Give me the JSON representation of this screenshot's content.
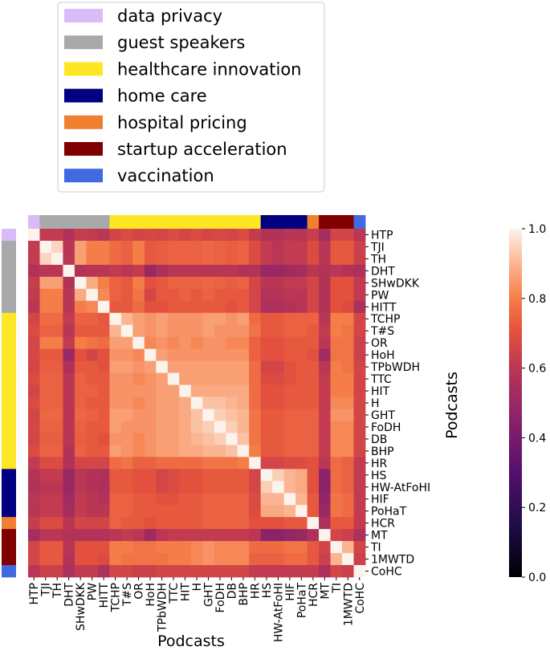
{
  "chart_data": {
    "type": "heatmap",
    "xlabel": "Podcasts",
    "ylabel": "Podcasts",
    "labels": [
      "HTP",
      "TJI",
      "TH",
      "DHT",
      "SHwDKK",
      "PW",
      "HITT",
      "TCHP",
      "T#S",
      "OR",
      "HoH",
      "TPbWDH",
      "TTC",
      "HIT",
      "H",
      "GHT",
      "FoDH",
      "DB",
      "BHP",
      "HR",
      "HS",
      "HW-AtFoHI",
      "HIF",
      "PoHaT",
      "HCR",
      "MT",
      "TI",
      "1MWTD",
      "CoHC"
    ],
    "groups": [
      "data privacy",
      "guest speakers",
      "guest speakers",
      "guest speakers",
      "guest speakers",
      "guest speakers",
      "guest speakers",
      "healthcare innovation",
      "healthcare innovation",
      "healthcare innovation",
      "healthcare innovation",
      "healthcare innovation",
      "healthcare innovation",
      "healthcare innovation",
      "healthcare innovation",
      "healthcare innovation",
      "healthcare innovation",
      "healthcare innovation",
      "healthcare innovation",
      "healthcare innovation",
      "home care",
      "home care",
      "home care",
      "home care",
      "hospital pricing",
      "startup acceleration",
      "startup acceleration",
      "startup acceleration",
      "vaccination"
    ],
    "legend": [
      {
        "name": "data privacy",
        "color": "#d9bbf7"
      },
      {
        "name": "guest speakers",
        "color": "#a9a9a9"
      },
      {
        "name": "healthcare innovation",
        "color": "#fde725"
      },
      {
        "name": "home care",
        "color": "#000080"
      },
      {
        "name": "hospital pricing",
        "color": "#f08030"
      },
      {
        "name": "startup acceleration",
        "color": "#800000"
      },
      {
        "name": "vaccination",
        "color": "#4169e1"
      }
    ],
    "colorbar": {
      "min": 0.0,
      "max": 1.0,
      "ticks": [
        "0.0",
        "0.2",
        "0.4",
        "0.6",
        "0.8",
        "1.0"
      ],
      "colormap": "inferno-like"
    },
    "values": [
      [
        1.0,
        0.62,
        0.62,
        0.58,
        0.63,
        0.62,
        0.6,
        0.66,
        0.68,
        0.66,
        0.67,
        0.66,
        0.68,
        0.66,
        0.68,
        0.66,
        0.67,
        0.66,
        0.68,
        0.62,
        0.58,
        0.58,
        0.6,
        0.59,
        0.63,
        0.54,
        0.66,
        0.66,
        0.6
      ],
      [
        0.62,
        1.0,
        0.95,
        0.6,
        0.86,
        0.8,
        0.8,
        0.76,
        0.74,
        0.8,
        0.72,
        0.73,
        0.74,
        0.74,
        0.74,
        0.75,
        0.74,
        0.73,
        0.74,
        0.68,
        0.62,
        0.6,
        0.62,
        0.62,
        0.68,
        0.6,
        0.72,
        0.72,
        0.64
      ],
      [
        0.62,
        0.95,
        1.0,
        0.6,
        0.86,
        0.8,
        0.8,
        0.76,
        0.74,
        0.8,
        0.72,
        0.73,
        0.74,
        0.74,
        0.74,
        0.75,
        0.74,
        0.73,
        0.74,
        0.68,
        0.62,
        0.6,
        0.62,
        0.62,
        0.68,
        0.6,
        0.72,
        0.72,
        0.64
      ],
      [
        0.58,
        0.6,
        0.6,
        1.0,
        0.58,
        0.6,
        0.6,
        0.62,
        0.6,
        0.62,
        0.5,
        0.56,
        0.6,
        0.6,
        0.6,
        0.6,
        0.6,
        0.6,
        0.58,
        0.58,
        0.5,
        0.5,
        0.52,
        0.54,
        0.6,
        0.58,
        0.6,
        0.58,
        0.56
      ],
      [
        0.63,
        0.86,
        0.86,
        0.58,
        1.0,
        0.88,
        0.8,
        0.74,
        0.72,
        0.8,
        0.7,
        0.72,
        0.74,
        0.74,
        0.74,
        0.75,
        0.74,
        0.73,
        0.74,
        0.66,
        0.6,
        0.6,
        0.62,
        0.62,
        0.66,
        0.58,
        0.7,
        0.7,
        0.62
      ],
      [
        0.62,
        0.8,
        0.8,
        0.6,
        0.88,
        1.0,
        0.82,
        0.74,
        0.72,
        0.78,
        0.66,
        0.72,
        0.72,
        0.74,
        0.72,
        0.74,
        0.72,
        0.72,
        0.72,
        0.66,
        0.58,
        0.58,
        0.6,
        0.6,
        0.66,
        0.58,
        0.7,
        0.7,
        0.62
      ],
      [
        0.6,
        0.8,
        0.8,
        0.6,
        0.8,
        0.82,
        1.0,
        0.72,
        0.72,
        0.76,
        0.7,
        0.7,
        0.72,
        0.72,
        0.72,
        0.72,
        0.72,
        0.7,
        0.72,
        0.66,
        0.56,
        0.56,
        0.58,
        0.6,
        0.66,
        0.58,
        0.7,
        0.68,
        0.56
      ],
      [
        0.66,
        0.76,
        0.76,
        0.62,
        0.74,
        0.74,
        0.72,
        1.0,
        0.9,
        0.86,
        0.84,
        0.86,
        0.84,
        0.84,
        0.84,
        0.86,
        0.86,
        0.84,
        0.86,
        0.76,
        0.72,
        0.72,
        0.74,
        0.74,
        0.74,
        0.6,
        0.8,
        0.8,
        0.66
      ],
      [
        0.68,
        0.74,
        0.74,
        0.6,
        0.72,
        0.72,
        0.72,
        0.9,
        1.0,
        0.86,
        0.84,
        0.86,
        0.84,
        0.84,
        0.84,
        0.86,
        0.84,
        0.84,
        0.84,
        0.78,
        0.72,
        0.72,
        0.74,
        0.74,
        0.72,
        0.62,
        0.8,
        0.78,
        0.66
      ],
      [
        0.66,
        0.8,
        0.8,
        0.62,
        0.8,
        0.78,
        0.76,
        0.86,
        0.86,
        1.0,
        0.82,
        0.84,
        0.82,
        0.84,
        0.82,
        0.84,
        0.84,
        0.82,
        0.82,
        0.74,
        0.7,
        0.7,
        0.72,
        0.72,
        0.72,
        0.6,
        0.78,
        0.78,
        0.64
      ],
      [
        0.67,
        0.72,
        0.72,
        0.5,
        0.7,
        0.66,
        0.7,
        0.84,
        0.84,
        0.82,
        1.0,
        0.86,
        0.84,
        0.84,
        0.84,
        0.84,
        0.84,
        0.84,
        0.84,
        0.74,
        0.7,
        0.7,
        0.72,
        0.72,
        0.7,
        0.52,
        0.78,
        0.78,
        0.64
      ],
      [
        0.66,
        0.73,
        0.73,
        0.56,
        0.72,
        0.72,
        0.7,
        0.86,
        0.86,
        0.84,
        0.86,
        1.0,
        0.86,
        0.86,
        0.86,
        0.86,
        0.86,
        0.86,
        0.86,
        0.76,
        0.66,
        0.66,
        0.7,
        0.72,
        0.72,
        0.6,
        0.8,
        0.78,
        0.66
      ],
      [
        0.68,
        0.74,
        0.74,
        0.6,
        0.74,
        0.72,
        0.72,
        0.84,
        0.84,
        0.82,
        0.84,
        0.86,
        1.0,
        0.86,
        0.86,
        0.86,
        0.86,
        0.86,
        0.86,
        0.76,
        0.68,
        0.68,
        0.7,
        0.72,
        0.72,
        0.62,
        0.8,
        0.8,
        0.66
      ],
      [
        0.66,
        0.74,
        0.74,
        0.6,
        0.74,
        0.74,
        0.72,
        0.84,
        0.84,
        0.84,
        0.84,
        0.86,
        0.86,
        1.0,
        0.88,
        0.88,
        0.88,
        0.88,
        0.88,
        0.76,
        0.7,
        0.7,
        0.72,
        0.72,
        0.72,
        0.62,
        0.8,
        0.8,
        0.66
      ],
      [
        0.68,
        0.74,
        0.74,
        0.6,
        0.74,
        0.72,
        0.72,
        0.84,
        0.84,
        0.82,
        0.84,
        0.86,
        0.86,
        0.88,
        1.0,
        0.92,
        0.92,
        0.9,
        0.88,
        0.76,
        0.7,
        0.7,
        0.72,
        0.72,
        0.72,
        0.62,
        0.82,
        0.82,
        0.66
      ],
      [
        0.66,
        0.75,
        0.75,
        0.6,
        0.75,
        0.74,
        0.72,
        0.86,
        0.86,
        0.84,
        0.84,
        0.86,
        0.86,
        0.88,
        0.92,
        1.0,
        0.94,
        0.92,
        0.9,
        0.78,
        0.72,
        0.72,
        0.74,
        0.74,
        0.74,
        0.62,
        0.84,
        0.84,
        0.66
      ],
      [
        0.67,
        0.74,
        0.74,
        0.6,
        0.74,
        0.72,
        0.72,
        0.86,
        0.84,
        0.84,
        0.84,
        0.86,
        0.86,
        0.88,
        0.92,
        0.94,
        1.0,
        0.94,
        0.9,
        0.78,
        0.72,
        0.72,
        0.74,
        0.74,
        0.74,
        0.62,
        0.82,
        0.82,
        0.66
      ],
      [
        0.66,
        0.73,
        0.73,
        0.6,
        0.73,
        0.72,
        0.7,
        0.84,
        0.84,
        0.82,
        0.84,
        0.86,
        0.86,
        0.88,
        0.9,
        0.92,
        0.94,
        1.0,
        0.92,
        0.78,
        0.72,
        0.72,
        0.74,
        0.74,
        0.74,
        0.62,
        0.82,
        0.82,
        0.66
      ],
      [
        0.68,
        0.74,
        0.74,
        0.58,
        0.74,
        0.72,
        0.72,
        0.86,
        0.84,
        0.82,
        0.84,
        0.86,
        0.86,
        0.88,
        0.88,
        0.9,
        0.9,
        0.92,
        1.0,
        0.8,
        0.72,
        0.72,
        0.74,
        0.74,
        0.74,
        0.62,
        0.82,
        0.82,
        0.66
      ],
      [
        0.62,
        0.68,
        0.68,
        0.58,
        0.66,
        0.66,
        0.66,
        0.76,
        0.78,
        0.74,
        0.74,
        0.76,
        0.76,
        0.76,
        0.76,
        0.78,
        0.78,
        0.78,
        0.8,
        1.0,
        0.66,
        0.66,
        0.68,
        0.68,
        0.7,
        0.6,
        0.76,
        0.74,
        0.62
      ],
      [
        0.58,
        0.62,
        0.62,
        0.5,
        0.6,
        0.58,
        0.56,
        0.72,
        0.72,
        0.7,
        0.7,
        0.66,
        0.68,
        0.7,
        0.7,
        0.72,
        0.72,
        0.72,
        0.72,
        0.66,
        1.0,
        0.94,
        0.9,
        0.88,
        0.7,
        0.46,
        0.76,
        0.74,
        0.62
      ],
      [
        0.58,
        0.6,
        0.6,
        0.5,
        0.6,
        0.58,
        0.56,
        0.72,
        0.72,
        0.7,
        0.7,
        0.66,
        0.68,
        0.7,
        0.7,
        0.72,
        0.72,
        0.72,
        0.72,
        0.66,
        0.94,
        1.0,
        0.9,
        0.88,
        0.7,
        0.46,
        0.76,
        0.74,
        0.62
      ],
      [
        0.6,
        0.62,
        0.62,
        0.52,
        0.62,
        0.6,
        0.58,
        0.74,
        0.74,
        0.72,
        0.72,
        0.7,
        0.7,
        0.72,
        0.72,
        0.74,
        0.74,
        0.74,
        0.74,
        0.68,
        0.9,
        0.9,
        1.0,
        0.9,
        0.72,
        0.48,
        0.78,
        0.76,
        0.62
      ],
      [
        0.59,
        0.62,
        0.62,
        0.54,
        0.62,
        0.6,
        0.6,
        0.74,
        0.74,
        0.72,
        0.72,
        0.72,
        0.72,
        0.72,
        0.72,
        0.74,
        0.74,
        0.74,
        0.74,
        0.68,
        0.88,
        0.88,
        0.9,
        1.0,
        0.72,
        0.5,
        0.78,
        0.76,
        0.62
      ],
      [
        0.63,
        0.68,
        0.68,
        0.6,
        0.66,
        0.66,
        0.66,
        0.74,
        0.72,
        0.72,
        0.7,
        0.72,
        0.72,
        0.72,
        0.72,
        0.74,
        0.74,
        0.74,
        0.74,
        0.7,
        0.7,
        0.7,
        0.72,
        0.72,
        1.0,
        0.56,
        0.72,
        0.72,
        0.62
      ],
      [
        0.54,
        0.6,
        0.6,
        0.58,
        0.58,
        0.58,
        0.58,
        0.6,
        0.62,
        0.6,
        0.52,
        0.6,
        0.62,
        0.62,
        0.62,
        0.62,
        0.62,
        0.62,
        0.62,
        0.6,
        0.46,
        0.46,
        0.48,
        0.5,
        0.56,
        1.0,
        0.66,
        0.64,
        0.56
      ],
      [
        0.66,
        0.72,
        0.72,
        0.6,
        0.7,
        0.7,
        0.7,
        0.8,
        0.8,
        0.78,
        0.78,
        0.8,
        0.8,
        0.8,
        0.82,
        0.84,
        0.82,
        0.82,
        0.82,
        0.76,
        0.76,
        0.76,
        0.78,
        0.78,
        0.72,
        0.66,
        1.0,
        0.9,
        0.66
      ],
      [
        0.66,
        0.72,
        0.72,
        0.58,
        0.7,
        0.7,
        0.68,
        0.8,
        0.78,
        0.78,
        0.78,
        0.78,
        0.8,
        0.8,
        0.82,
        0.84,
        0.82,
        0.82,
        0.82,
        0.74,
        0.74,
        0.74,
        0.76,
        0.76,
        0.72,
        0.64,
        0.9,
        1.0,
        0.64
      ],
      [
        0.6,
        0.64,
        0.64,
        0.56,
        0.62,
        0.62,
        0.56,
        0.66,
        0.66,
        0.64,
        0.64,
        0.66,
        0.66,
        0.66,
        0.66,
        0.66,
        0.66,
        0.66,
        0.66,
        0.62,
        0.62,
        0.62,
        0.62,
        0.62,
        0.62,
        0.56,
        0.66,
        0.64,
        1.0
      ]
    ]
  }
}
